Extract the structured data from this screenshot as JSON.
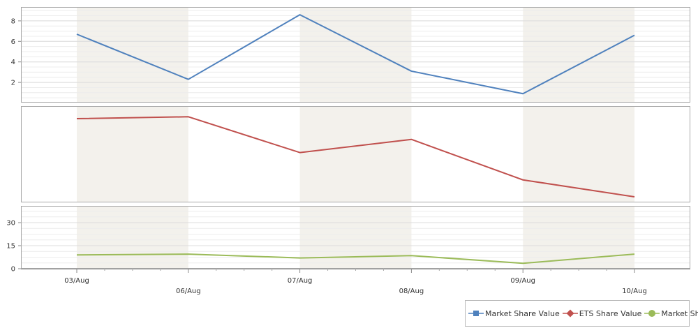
{
  "chart_data": {
    "type": "line",
    "categories": [
      "03/Aug",
      "06/Aug",
      "07/Aug",
      "08/Aug",
      "09/Aug",
      "10/Aug"
    ],
    "series": [
      {
        "name": "Market Share Value",
        "values": [
          6.7,
          2.3,
          8.6,
          3.1,
          0.9,
          6.6
        ],
        "color": "#4f81bd",
        "marker": "square-icon"
      },
      {
        "name": "ETS Share Value",
        "values": [
          100,
          102,
          64,
          78,
          35,
          17
        ],
        "color": "#c0504d",
        "marker": "diamond-icon"
      },
      {
        "name": "Market Share",
        "values": [
          9,
          9.5,
          7,
          8.5,
          3.5,
          9.5
        ],
        "color": "#9bbb59",
        "marker": "circle-icon"
      }
    ],
    "panes": [
      {
        "series": 0,
        "ylim": [
          0,
          9.3
        ],
        "yticks": [
          "2",
          "4",
          "6",
          "8"
        ]
      },
      {
        "series": 1,
        "ylim": [
          0,
          110
        ],
        "yticks": []
      },
      {
        "series": 2,
        "ylim": [
          0,
          40
        ],
        "yticks": [
          "0",
          "15",
          "30"
        ]
      }
    ],
    "legend_position": "bottom-right",
    "grid": true,
    "alternating_bands": true
  }
}
